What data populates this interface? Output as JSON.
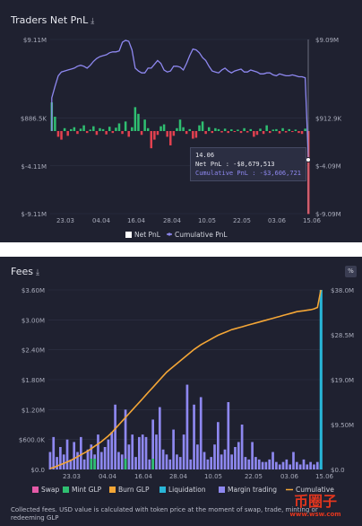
{
  "top_panel": {
    "title": "Traders Net PnL",
    "download_icon": "download-icon",
    "tooltip": {
      "date": "14.06",
      "net_pnl": "Net PnL : -$8,679,513",
      "cum_pnl": "Cumulative PnL : -$3,606,721"
    },
    "legend": [
      "Net PnL",
      "Cumulative PnL"
    ]
  },
  "bottom_panel": {
    "title": "Fees",
    "download_icon": "download-icon",
    "percent_button": "%",
    "legend": [
      "Swap",
      "Mint GLP",
      "Burn GLP",
      "Liquidation",
      "Margin trading",
      "Cumulative"
    ],
    "footnote": "Collected fees. USD value is calculated with token price at the moment of swap, trade, minting or redeeming GLP"
  },
  "colors": {
    "background": "#1f2130",
    "positive_bar": "#2fbf71",
    "negative_bar": "#e3414f",
    "cumulative_line": "#8e88f0",
    "swap": "#e55aa7",
    "mint_glp": "#2fbf71",
    "burn_glp": "#f4a636",
    "liquidation": "#29b6d8",
    "margin_trading": "#8e88f0",
    "cumulative_fees": "#f4a636"
  },
  "watermark": {
    "line1": "币圈子",
    "line2": "www.wsw.com"
  },
  "chart_data": [
    {
      "type": "bar",
      "title": "Traders Net PnL",
      "x_ticks": [
        "23.03",
        "04.04",
        "16.04",
        "28.04",
        "10.05",
        "22.05",
        "03.06",
        "15.06"
      ],
      "y_left_ticks": [
        "$9.11M",
        "$886.5K",
        "$-4.11M",
        "$-9.11M"
      ],
      "y_left_values": [
        9110000,
        886500,
        -4110000,
        -9110000
      ],
      "y_right_ticks": [
        "$9.09M",
        "$912.9K",
        "$-4.09M",
        "$-9.09M"
      ],
      "y_right_values": [
        9090000,
        912900,
        -4090000,
        -9090000
      ],
      "ylim_left": [
        -9110000,
        9110000
      ],
      "ylim_right": [
        -9090000,
        9090000
      ],
      "series": [
        {
          "name": "Net PnL",
          "axis": "left",
          "values": [
            3000000,
            1500000,
            -600000,
            -900000,
            300000,
            -500000,
            200000,
            400000,
            -300000,
            250000,
            600000,
            -200000,
            150000,
            500000,
            -400000,
            300000,
            200000,
            -350000,
            450000,
            -200000,
            350000,
            800000,
            -300000,
            1000000,
            -600000,
            400000,
            2500000,
            1800000,
            -400000,
            1200000,
            300000,
            -1800000,
            -900000,
            -400000,
            500000,
            700000,
            -600000,
            -1500000,
            -500000,
            300000,
            1200000,
            400000,
            -300000,
            200000,
            -800000,
            -700000,
            600000,
            1000000,
            -300000,
            400000,
            -200000,
            300000,
            200000,
            -150000,
            250000,
            -200000,
            180000,
            -100000,
            150000,
            -200000,
            300000,
            -150000,
            200000,
            -600000,
            -400000,
            250000,
            -300000,
            600000,
            -200000,
            150000,
            200000,
            -250000,
            300000,
            -150000,
            200000,
            -100000,
            150000,
            -200000,
            -300000,
            250000,
            -8679513
          ]
        },
        {
          "name": "Cumulative PnL",
          "axis": "right",
          "values": [
            3000000,
            4200000,
            5300000,
            5700000,
            5800000,
            5900000,
            6000000,
            6100000,
            6300000,
            6400000,
            6300000,
            6100000,
            6400000,
            6800000,
            7100000,
            7300000,
            7400000,
            7500000,
            7700000,
            7800000,
            7800000,
            7900000,
            8800000,
            9000000,
            8900000,
            8000000,
            6100000,
            5800000,
            5600000,
            5600000,
            6100000,
            6100000,
            6500000,
            6900000,
            6600000,
            5900000,
            5700000,
            5800000,
            6300000,
            6300000,
            6200000,
            5900000,
            6600000,
            7400000,
            8100000,
            8000000,
            7700000,
            7200000,
            6900000,
            6300000,
            5800000,
            5700000,
            5600000,
            5900000,
            6100000,
            5800000,
            5600000,
            5800000,
            5900000,
            6000000,
            5700000,
            5700000,
            5900000,
            5800000,
            5700000,
            5500000,
            5500000,
            5600000,
            5600000,
            5400000,
            5300000,
            5500000,
            5400000,
            5300000,
            5300000,
            5400000,
            5300000,
            5200000,
            5200000,
            5100000,
            -3606721
          ]
        }
      ]
    },
    {
      "type": "bar",
      "title": "Fees",
      "x_ticks": [
        "23.03",
        "04.04",
        "16.04",
        "28.04",
        "10.05",
        "22.05",
        "03.06",
        "15.06"
      ],
      "y_left_ticks": [
        "$0.0",
        "$600.0K",
        "$1.20M",
        "$1.80M",
        "$2.40M",
        "$3.00M",
        "$3.60M"
      ],
      "y_left_values": [
        0,
        600000,
        1200000,
        1800000,
        2400000,
        3000000,
        3600000
      ],
      "y_right_ticks": [
        "$0.0",
        "$9.50M",
        "$19.0M",
        "$28.5M",
        "$38.0M"
      ],
      "y_right_values": [
        0,
        9500000,
        19000000,
        28500000,
        38000000
      ],
      "ylim_left": [
        0,
        3600000
      ],
      "ylim_right": [
        0,
        38000000
      ],
      "series": [
        {
          "name": "Margin trading",
          "axis": "left",
          "values": [
            350000,
            650000,
            250000,
            450000,
            300000,
            600000,
            200000,
            550000,
            350000,
            650000,
            200000,
            400000,
            500000,
            300000,
            700000,
            350000,
            450000,
            600000,
            750000,
            1300000,
            350000,
            300000,
            1200000,
            500000,
            700000,
            250000,
            650000,
            700000,
            650000,
            200000,
            1000000,
            700000,
            1250000,
            400000,
            300000,
            200000,
            800000,
            300000,
            250000,
            700000,
            1700000,
            200000,
            1300000,
            500000,
            1450000,
            350000,
            200000,
            250000,
            500000,
            950000,
            300000,
            400000,
            1350000,
            300000,
            450000,
            550000,
            900000,
            250000,
            200000,
            550000,
            250000,
            200000,
            150000,
            150000,
            200000,
            350000,
            150000,
            100000,
            150000,
            200000,
            100000,
            350000,
            150000,
            100000,
            200000,
            100000,
            150000,
            100000,
            150000,
            100000
          ]
        },
        {
          "name": "Cumulative",
          "axis": "right",
          "values": [
            200000,
            400000,
            700000,
            1000000,
            1300000,
            1600000,
            1900000,
            2300000,
            2700000,
            3100000,
            3500000,
            3900000,
            4400000,
            4900000,
            5400000,
            5900000,
            6500000,
            7100000,
            7800000,
            8600000,
            9400000,
            10200000,
            11000000,
            11800000,
            12600000,
            13400000,
            14200000,
            15000000,
            15800000,
            16600000,
            17400000,
            18200000,
            19000000,
            19800000,
            20600000,
            21200000,
            21800000,
            22400000,
            23000000,
            23600000,
            24200000,
            24800000,
            25400000,
            25900000,
            26400000,
            26800000,
            27200000,
            27600000,
            28000000,
            28400000,
            28700000,
            29000000,
            29300000,
            29600000,
            29800000,
            30000000,
            30200000,
            30400000,
            30600000,
            30800000,
            31000000,
            31200000,
            31400000,
            31600000,
            31800000,
            32000000,
            32200000,
            32400000,
            32600000,
            32800000,
            33000000,
            33200000,
            33400000,
            33500000,
            33600000,
            33700000,
            33800000,
            34000000,
            34300000,
            38000000
          ]
        },
        {
          "name": "Liquidation",
          "axis": "left",
          "values": [
            0,
            0,
            0,
            0,
            0,
            0,
            0,
            0,
            0,
            0,
            0,
            0,
            0,
            0,
            0,
            0,
            0,
            0,
            0,
            0,
            0,
            0,
            0,
            0,
            0,
            0,
            0,
            0,
            0,
            0,
            0,
            0,
            0,
            0,
            0,
            0,
            0,
            0,
            0,
            0,
            0,
            0,
            0,
            0,
            0,
            0,
            0,
            0,
            0,
            0,
            0,
            0,
            0,
            0,
            0,
            0,
            0,
            0,
            0,
            0,
            0,
            0,
            0,
            0,
            0,
            0,
            0,
            0,
            0,
            0,
            0,
            0,
            0,
            0,
            0,
            0,
            0,
            0,
            0,
            3600000
          ]
        }
      ]
    }
  ]
}
